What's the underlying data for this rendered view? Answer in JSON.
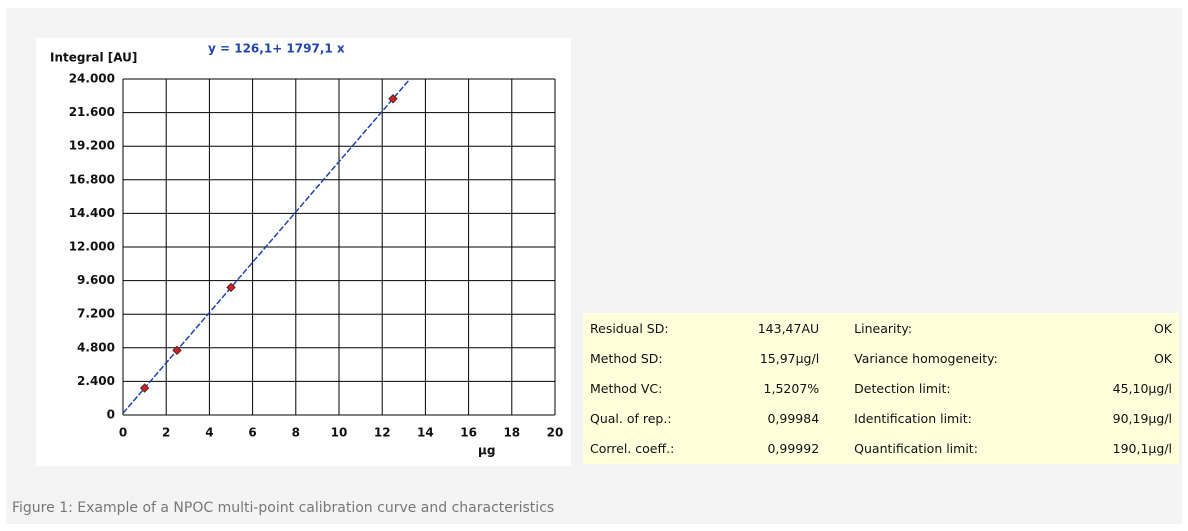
{
  "chart_data": {
    "type": "scatter",
    "annotation": "y = 126,1+ 1797,1 x",
    "y_label": "Integral [AU]",
    "x_label": "µg",
    "x": [
      1,
      2.5,
      5,
      12.5
    ],
    "values": [
      1923,
      4619,
      9112,
      22590
    ],
    "color": "#cc2222",
    "fit": {
      "x": [
        0,
        13.28
      ],
      "y": [
        126.1,
        23991
      ],
      "color": "#2244aa"
    },
    "xlim": [
      0,
      20
    ],
    "xticks": [
      0,
      2,
      4,
      6,
      8,
      10,
      12,
      14,
      16,
      18,
      20
    ],
    "ylim": [
      0,
      24000
    ],
    "yticks": [
      0,
      {
        "value": 2400,
        "label": "2.400"
      },
      {
        "value": 4800,
        "label": "4.800"
      },
      {
        "value": 7200,
        "label": "7.200"
      },
      {
        "value": 9600,
        "label": "9.600"
      },
      {
        "value": 12000,
        "label": "12.000"
      },
      {
        "value": 14400,
        "label": "14.400"
      },
      {
        "value": 16800,
        "label": "16.800"
      },
      {
        "value": 19200,
        "label": "19.200"
      },
      {
        "value": 21600,
        "label": "21.600"
      },
      {
        "value": 24000,
        "label": "24.000"
      }
    ],
    "grid": true
  },
  "table": {
    "rows": [
      [
        "Residual SD:",
        "143,47AU",
        "Linearity:",
        "OK"
      ],
      [
        "Method SD:",
        "15,97µg/l",
        "Variance homogeneity:",
        "OK"
      ],
      [
        "Method VC:",
        "1,5207%",
        "Detection limit:",
        "45,10µg/l"
      ],
      [
        "Qual. of rep.:",
        "0,99984",
        "Identification limit:",
        "90,19µg/l"
      ],
      [
        "Correl. coeff.:",
        "0,99992",
        "Quantification limit:",
        "190,1µg/l"
      ]
    ]
  },
  "caption": "Figure 1: Example of a NPOC multi-point calibration curve and characteristics"
}
